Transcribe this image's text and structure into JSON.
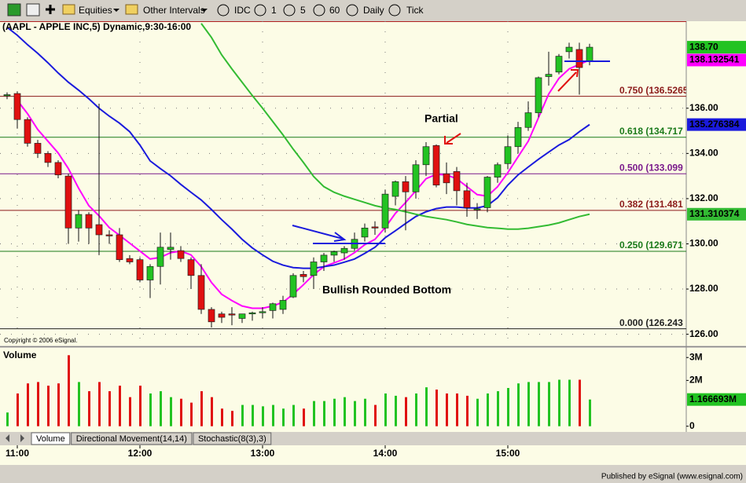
{
  "toolbar": {
    "items": [
      "Equities",
      "Other Intervals",
      "IDC",
      "1",
      "5",
      "60",
      "Daily",
      "Tick"
    ]
  },
  "chart_data": {
    "type": "candlestick",
    "title": "(AAPL - APPLE INC,5) Dynamic,9:30-16:00",
    "x": [
      "10:55",
      "11:00",
      "11:05",
      "11:10",
      "11:15",
      "11:20",
      "11:25",
      "11:30",
      "11:35",
      "11:40",
      "11:45",
      "11:50",
      "11:55",
      "12:00",
      "12:05",
      "12:10",
      "12:15",
      "12:20",
      "12:25",
      "12:30",
      "12:35",
      "12:40",
      "12:45",
      "12:50",
      "12:55",
      "13:00",
      "13:05",
      "13:10",
      "13:15",
      "13:20",
      "13:25",
      "13:30",
      "13:35",
      "13:40",
      "13:45",
      "13:50",
      "13:55",
      "14:00",
      "14:05",
      "14:10",
      "14:15",
      "14:20",
      "14:25",
      "14:30",
      "14:35",
      "14:40",
      "14:45",
      "14:50",
      "14:55",
      "15:00",
      "15:05",
      "15:10",
      "15:15",
      "15:20",
      "15:25",
      "15:30",
      "15:35",
      "15:40"
    ],
    "open": [
      136.55,
      136.65,
      135.5,
      134.45,
      134.0,
      133.6,
      133.0,
      130.7,
      131.3,
      130.85,
      130.4,
      130.4,
      129.35,
      129.3,
      128.4,
      129.0,
      129.75,
      129.7,
      129.3,
      128.6,
      127.1,
      126.9,
      126.9,
      126.7,
      126.9,
      126.95,
      127.05,
      127.1,
      127.65,
      128.65,
      128.6,
      129.2,
      129.5,
      129.6,
      129.8,
      130.3,
      130.75,
      130.7,
      132.1,
      132.75,
      132.3,
      133.5,
      134.35,
      133.1,
      133.2,
      132.35,
      131.5,
      131.6,
      132.95,
      133.55,
      134.3,
      135.15,
      135.8,
      137.4,
      137.6,
      138.5,
      138.6,
      138.1
    ],
    "high": [
      136.7,
      136.75,
      135.6,
      134.6,
      134.1,
      133.7,
      133.1,
      131.5,
      131.4,
      136.2,
      130.6,
      130.7,
      129.5,
      129.4,
      129.1,
      130.5,
      130.5,
      129.9,
      129.4,
      129.1,
      127.2,
      127.0,
      127.2,
      126.9,
      127.0,
      127.2,
      127.4,
      127.7,
      128.7,
      128.8,
      129.4,
      129.6,
      129.7,
      129.9,
      130.5,
      130.9,
      131.0,
      132.4,
      132.8,
      133.0,
      133.7,
      134.5,
      134.4,
      133.6,
      133.4,
      132.7,
      131.8,
      133.0,
      133.6,
      134.8,
      135.4,
      136.3,
      137.4,
      138.5,
      138.4,
      138.9,
      138.9,
      138.85
    ],
    "low": [
      136.4,
      135.1,
      134.3,
      133.8,
      133.4,
      132.9,
      130.0,
      130.1,
      130.0,
      129.5,
      130.0,
      129.2,
      129.1,
      128.3,
      127.6,
      128.2,
      129.3,
      129.2,
      128.0,
      126.9,
      126.3,
      126.5,
      126.4,
      126.5,
      126.6,
      126.7,
      126.7,
      126.9,
      127.6,
      128.3,
      128.0,
      128.8,
      129.2,
      129.3,
      129.7,
      130.1,
      130.4,
      130.5,
      131.7,
      130.6,
      132.0,
      133.0,
      132.5,
      132.2,
      131.7,
      131.2,
      131.1,
      131.4,
      132.7,
      133.3,
      134.0,
      135.0,
      135.6,
      137.0,
      137.5,
      138.2,
      136.6,
      137.9
    ],
    "close": [
      136.6,
      135.5,
      134.45,
      134.0,
      133.6,
      133.05,
      130.7,
      131.3,
      130.7,
      130.4,
      130.35,
      129.3,
      129.2,
      128.4,
      129.0,
      129.85,
      129.85,
      129.35,
      128.6,
      127.1,
      126.55,
      126.75,
      126.85,
      126.9,
      126.95,
      127.0,
      127.35,
      127.5,
      128.6,
      128.55,
      129.2,
      129.5,
      129.65,
      129.8,
      130.2,
      130.7,
      130.7,
      132.2,
      132.75,
      132.3,
      133.5,
      134.3,
      132.6,
      132.7,
      132.35,
      131.6,
      131.55,
      132.95,
      133.5,
      134.3,
      135.15,
      135.8,
      137.35,
      137.5,
      138.3,
      138.7,
      137.8,
      138.7
    ],
    "last_label": "138.70",
    "up_color": "#22c322",
    "down_color": "#e01010",
    "ylim": [
      125.5,
      139.85
    ],
    "yticks": [
      {
        "value": 126,
        "label": "126.00"
      },
      {
        "value": 128,
        "label": "128.00"
      },
      {
        "value": 130,
        "label": "130.00"
      },
      {
        "value": 132,
        "label": "132.00"
      },
      {
        "value": 134,
        "label": "134.00"
      },
      {
        "value": 136,
        "label": "136.00"
      }
    ],
    "xticks": [
      "11:00",
      "12:00",
      "13:00",
      "14:00",
      "15:00"
    ],
    "grid": true,
    "series": [
      {
        "color": "#ff00ff",
        "last_label": "138.132541",
        "values": [
          null,
          136.35,
          135.76,
          135.06,
          134.54,
          134.02,
          133.33,
          132.46,
          131.69,
          131.24,
          130.72,
          130.38,
          130.03,
          129.68,
          129.33,
          129.4,
          129.61,
          129.68,
          129.51,
          128.99,
          128.29,
          127.77,
          127.49,
          127.25,
          127.15,
          127.15,
          127.25,
          127.42,
          127.77,
          128.19,
          128.64,
          128.99,
          129.16,
          129.33,
          129.61,
          129.96,
          130.2,
          130.72,
          131.35,
          131.83,
          132.35,
          132.88,
          133.08,
          133.05,
          132.88,
          132.53,
          132.18,
          132.11,
          132.53,
          133.15,
          133.85,
          134.54,
          135.58,
          136.63,
          137.32,
          137.74,
          137.94,
          138.132541
        ]
      },
      {
        "color": "#1a1adc",
        "last_label": "135.276384",
        "values": [
          139.58,
          139.23,
          138.81,
          138.43,
          138.01,
          137.56,
          137.15,
          136.8,
          136.42,
          136.0,
          135.65,
          135.34,
          134.96,
          134.37,
          133.67,
          133.33,
          133.01,
          132.63,
          132.28,
          131.94,
          131.52,
          131.07,
          130.65,
          130.2,
          129.82,
          129.51,
          129.23,
          129.06,
          128.95,
          128.92,
          128.92,
          128.99,
          129.06,
          129.19,
          129.33,
          129.58,
          129.85,
          130.27,
          130.58,
          130.9,
          131.21,
          131.42,
          131.56,
          131.63,
          131.63,
          131.59,
          131.59,
          131.69,
          132.04,
          132.6,
          133.05,
          133.4,
          133.74,
          134.06,
          134.37,
          134.61,
          134.96,
          135.276384
        ]
      },
      {
        "color": "#33bb33",
        "last_label": "131.310374",
        "values": [
          null,
          null,
          null,
          null,
          null,
          null,
          null,
          null,
          null,
          null,
          null,
          null,
          null,
          null,
          null,
          null,
          null,
          null,
          null,
          139.75,
          139.13,
          138.36,
          137.74,
          137.15,
          136.56,
          136.0,
          135.41,
          134.82,
          134.19,
          133.6,
          132.98,
          132.53,
          132.28,
          132.11,
          131.97,
          131.83,
          131.69,
          131.59,
          131.52,
          131.42,
          131.31,
          131.21,
          131.14,
          131.07,
          130.97,
          130.86,
          130.79,
          130.72,
          130.69,
          130.65,
          130.65,
          130.69,
          130.76,
          130.83,
          130.93,
          131.07,
          131.21,
          131.310374
        ]
      }
    ],
    "levels": [
      {
        "value": 136.5265,
        "label": "0.750 (136.5265",
        "color": "#8b1a1a"
      },
      {
        "value": 134.717,
        "label": "0.618 (134.717",
        "color": "#1a7a1a"
      },
      {
        "value": 133.099,
        "label": "0.500 (133.099",
        "color": "#7a1a8b"
      },
      {
        "value": 131.481,
        "label": "0.382 (131.481",
        "color": "#8b1a1a"
      },
      {
        "value": 129.671,
        "label": "0.250 (129.671",
        "color": "#1a7a1a"
      },
      {
        "value": 126.243,
        "label": "0.000 (126.243",
        "color": "#222222"
      }
    ],
    "annotations": [
      "Partial",
      "Bullish Rounded Bottom"
    ],
    "copyright": "Copyright © 2006 eSignal.",
    "volume": {
      "title": "Volume",
      "values": [
        0.6,
        1.43,
        1.87,
        1.93,
        1.77,
        1.87,
        3.1,
        1.93,
        1.53,
        1.93,
        1.53,
        1.77,
        1.27,
        1.77,
        1.43,
        1.53,
        1.27,
        1.2,
        1.03,
        1.53,
        1.27,
        0.77,
        0.67,
        0.93,
        0.93,
        0.87,
        0.93,
        0.77,
        0.93,
        0.77,
        1.1,
        1.1,
        1.2,
        1.27,
        1.1,
        1.2,
        0.93,
        1.43,
        1.33,
        1.27,
        1.43,
        1.7,
        1.6,
        1.43,
        1.43,
        1.33,
        1.2,
        1.43,
        1.53,
        1.67,
        1.87,
        1.93,
        1.93,
        1.93,
        2.03,
        2.03,
        2.03,
        1.166693
      ],
      "last_label": "1.166693M",
      "ylim": [
        -0.25,
        3.35
      ],
      "yticks": [
        {
          "value": 3,
          "label": "3M"
        },
        {
          "value": 2,
          "label": "2M"
        },
        0
      ]
    }
  },
  "tabs": [
    "Volume",
    "Directional Movement(14,14)",
    "Stochastic(8(3),3)"
  ],
  "footer": "Published by eSignal (www.esignal.com)"
}
